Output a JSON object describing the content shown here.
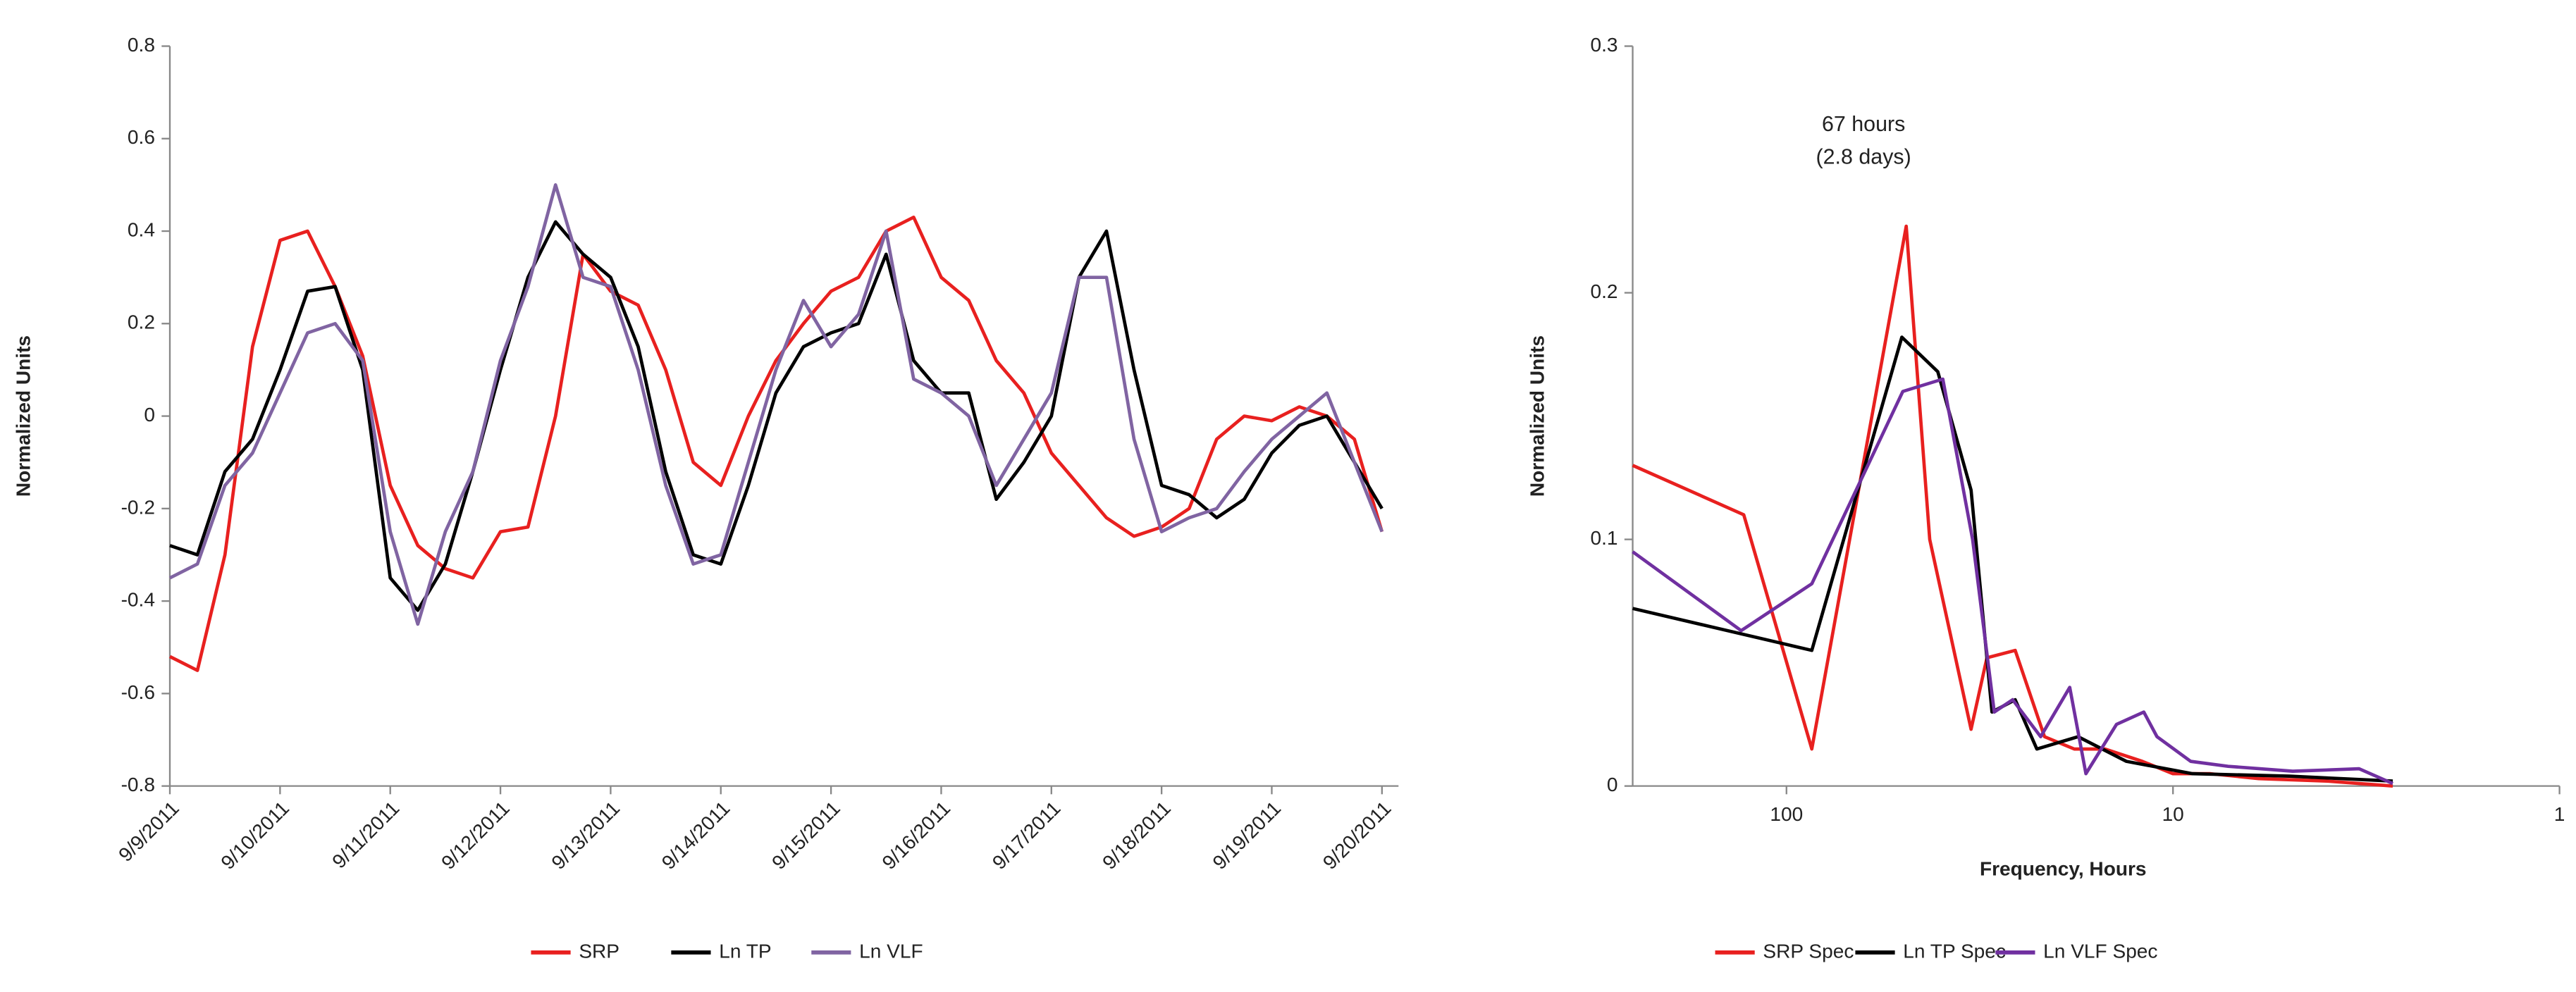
{
  "chart_data": [
    {
      "type": "line",
      "y_label": "Normalized Units",
      "categories": [
        "9/9/2011",
        null,
        null,
        null,
        "9/10/2011",
        null,
        null,
        null,
        "9/11/2011",
        null,
        null,
        null,
        "9/12/2011",
        null,
        null,
        null,
        "9/13/2011",
        null,
        null,
        null,
        "9/14/2011",
        null,
        null,
        null,
        "9/15/2011",
        null,
        null,
        null,
        "9/16/2011",
        null,
        null,
        null,
        "9/17/2011",
        null,
        null,
        null,
        "9/18/2011",
        null,
        null,
        null,
        "9/19/2011",
        null,
        null,
        null,
        "9/20/2011"
      ],
      "ylim": [
        -0.8,
        0.8
      ],
      "yticks": [
        -0.8,
        -0.6,
        -0.4,
        -0.2,
        0,
        0.2,
        0.4,
        0.6,
        0.8
      ],
      "series": [
        {
          "name": "SRP",
          "color": "#e8201f",
          "values": [
            -0.52,
            -0.55,
            -0.3,
            0.15,
            0.38,
            0.4,
            0.28,
            0.13,
            -0.15,
            -0.28,
            -0.33,
            -0.35,
            -0.25,
            -0.24,
            0.0,
            0.35,
            0.27,
            0.24,
            0.1,
            -0.1,
            -0.15,
            0.0,
            0.12,
            0.2,
            0.27,
            0.3,
            0.4,
            0.43,
            0.3,
            0.25,
            0.12,
            0.05,
            -0.08,
            -0.15,
            -0.22,
            -0.26,
            -0.24,
            -0.2,
            -0.05,
            0.0,
            -0.01,
            0.02,
            0.0,
            -0.05,
            -0.25
          ]
        },
        {
          "name": "Ln TP",
          "color": "#000000",
          "values": [
            -0.28,
            -0.3,
            -0.12,
            -0.05,
            0.1,
            0.27,
            0.28,
            0.1,
            -0.35,
            -0.42,
            -0.32,
            -0.12,
            0.1,
            0.3,
            0.42,
            0.35,
            0.3,
            0.15,
            -0.12,
            -0.3,
            -0.32,
            -0.15,
            0.05,
            0.15,
            0.18,
            0.2,
            0.35,
            0.12,
            0.05,
            0.05,
            -0.18,
            -0.1,
            0.0,
            0.3,
            0.4,
            0.1,
            -0.15,
            -0.17,
            -0.22,
            -0.18,
            -0.08,
            -0.02,
            0.0,
            -0.1,
            -0.2
          ]
        },
        {
          "name": "Ln VLF",
          "color": "#8064a2",
          "values": [
            -0.35,
            -0.32,
            -0.15,
            -0.08,
            0.05,
            0.18,
            0.2,
            0.12,
            -0.25,
            -0.45,
            -0.25,
            -0.12,
            0.12,
            0.28,
            0.5,
            0.3,
            0.28,
            0.1,
            -0.15,
            -0.32,
            -0.3,
            -0.1,
            0.1,
            0.25,
            0.15,
            0.22,
            0.4,
            0.08,
            0.05,
            0.0,
            -0.15,
            -0.05,
            0.05,
            0.3,
            0.3,
            -0.05,
            -0.25,
            -0.22,
            -0.2,
            -0.12,
            -0.05,
            0.0,
            0.05,
            -0.1,
            -0.25
          ]
        }
      ]
    },
    {
      "type": "line",
      "x_label": "Frequency, Hours",
      "y_label": "Normalized Units",
      "log_x": true,
      "xlim": [
        250,
        1
      ],
      "xticks": [
        100,
        10,
        1
      ],
      "ylim": [
        0,
        0.3
      ],
      "yticks": [
        0,
        0.1,
        0.2,
        0.3
      ],
      "annotations": [
        "67 hours",
        "(2.8 days)"
      ],
      "series": [
        {
          "name": "SRP Spec",
          "color": "#e8201f",
          "x": [
            250,
            129,
            86,
            49,
            42.6,
            33.3,
            30.3,
            25.6,
            21.5,
            18,
            15,
            12,
            10,
            8,
            6,
            4,
            2.7
          ],
          "values": [
            0.13,
            0.11,
            0.015,
            0.227,
            0.1,
            0.023,
            0.052,
            0.055,
            0.02,
            0.015,
            0.015,
            0.01,
            0.005,
            0.005,
            0.003,
            0.002,
            0.0
          ]
        },
        {
          "name": "Ln TP Spec",
          "color": "#000000",
          "x": [
            250,
            86,
            50.3,
            40.6,
            33.3,
            29.4,
            25.6,
            22.5,
            17.6,
            13.2,
            8.9,
            5,
            2.7
          ],
          "values": [
            0.072,
            0.055,
            0.182,
            0.168,
            0.12,
            0.03,
            0.035,
            0.015,
            0.02,
            0.01,
            0.005,
            0.004,
            0.002
          ]
        },
        {
          "name": "Ln VLF Spec",
          "color": "#7030a0",
          "x": [
            250,
            131,
            86,
            50,
            39.4,
            33,
            29,
            26,
            22,
            18.5,
            16.8,
            14,
            11.9,
            11,
            9,
            7.2,
            4.9,
            3.3,
            2.7
          ],
          "values": [
            0.095,
            0.063,
            0.082,
            0.16,
            0.165,
            0.1,
            0.03,
            0.035,
            0.02,
            0.04,
            0.005,
            0.025,
            0.03,
            0.02,
            0.01,
            0.008,
            0.006,
            0.007,
            0.001
          ]
        }
      ]
    }
  ]
}
